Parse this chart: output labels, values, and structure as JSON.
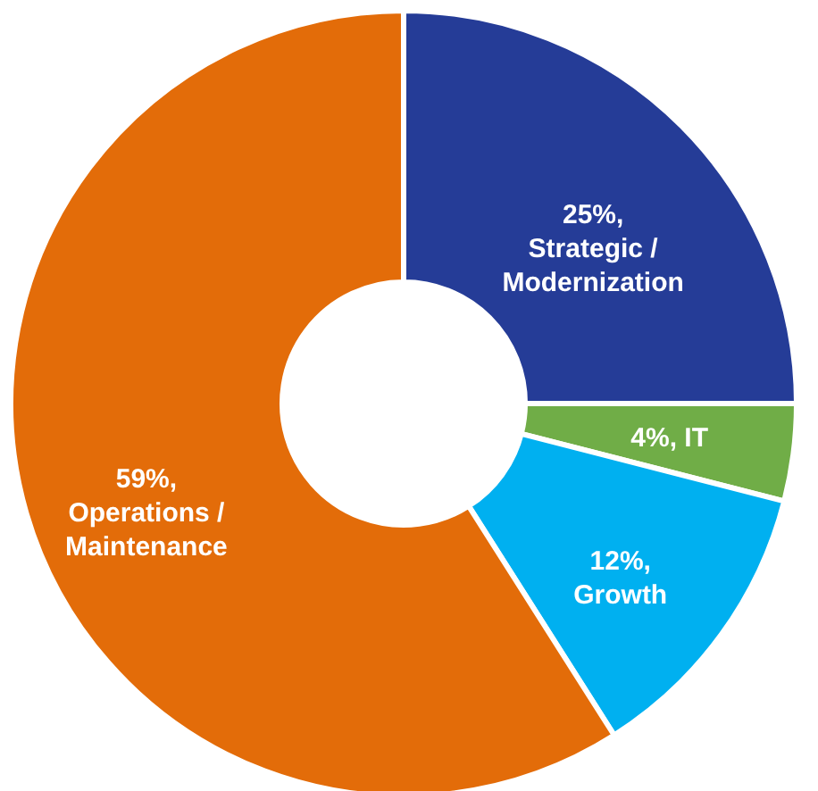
{
  "chart_data": {
    "type": "donut",
    "categories": [
      "Strategic / Modernization",
      "IT",
      "Growth",
      "Operations / Maintenance"
    ],
    "values": [
      25,
      4,
      12,
      59
    ],
    "value_labels": [
      "25%,",
      "4%,",
      "12%,",
      "59%,"
    ],
    "colors": [
      "#253c97",
      "#70ad47",
      "#00b0f0",
      "#e36c09"
    ],
    "legend": false
  }
}
